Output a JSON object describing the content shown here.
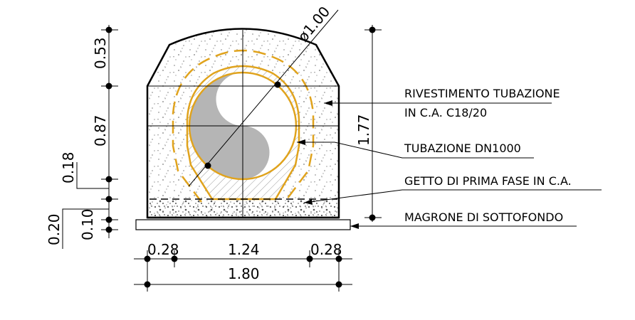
{
  "dimensions": {
    "diameter": "ø1.00",
    "left_top": "0.53",
    "left_mid": "0.87",
    "left_small": "0.18",
    "left_outer": "0.20",
    "left_base": "0.10",
    "right_total": "1.77",
    "bottom_left": "0.28",
    "bottom_mid": "1.24",
    "bottom_right": "0.28",
    "bottom_total": "1.80"
  },
  "labels": {
    "rivestimento_line1": "RIVESTIMENTO TUBAZIONE",
    "rivestimento_line2": "IN C.A. C18/20",
    "tubazione": "TUBAZIONE DN1000",
    "getto": "GETTO DI PRIMA FASE IN C.A.",
    "magrone": "MAGRONE DI SOTTOFONDO"
  },
  "colors": {
    "pipe_lining": "#e0a31d",
    "pipe_fill": "#b5b5b5",
    "line": "#000000"
  }
}
